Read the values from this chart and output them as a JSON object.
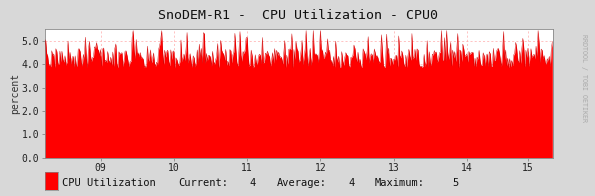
{
  "title": "SnoDEM-R1 -  CPU Utilization - CPU0",
  "ylabel": "percent",
  "bg_color": "#d8d8d8",
  "plot_bg_color": "#ffffff",
  "line_color": "#cc0000",
  "fill_color": "#ff0000",
  "grid_color": "#ffaaaa",
  "ylim": [
    0.0,
    5.5
  ],
  "ytick_values": [
    0.0,
    1.0,
    2.0,
    3.0,
    4.0,
    5.0
  ],
  "xlim_min": 0,
  "xlim_max": 500,
  "xtick_labels": [
    "09",
    "10",
    "11",
    "12",
    "13",
    "14",
    "15"
  ],
  "xtick_positions": [
    55,
    127,
    199,
    271,
    343,
    415,
    475
  ],
  "legend_label": "CPU Utilization",
  "legend_current": "4",
  "legend_average": "4",
  "legend_maximum": "5",
  "rrdtool_text": "RRDTOOL / TOBI OETIKER",
  "title_fontsize": 9.5,
  "axis_fontsize": 7,
  "legend_fontsize": 7.5,
  "base_value": 4.1,
  "spike_max": 5.45,
  "n_points": 500,
  "seed": 42
}
